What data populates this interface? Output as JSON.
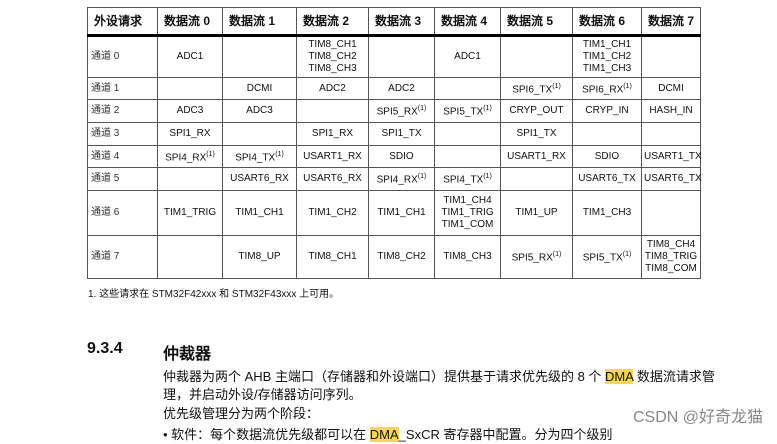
{
  "table": {
    "headers": [
      "外设请求",
      "数据流 0",
      "数据流 1",
      "数据流 2",
      "数据流 3",
      "数据流 4",
      "数据流 5",
      "数据流 6",
      "数据流 7"
    ],
    "rows": [
      {
        "channel": "通道 0",
        "cells": [
          [
            "ADC1"
          ],
          [],
          [
            "TIM8_CH1",
            "TIM8_CH2",
            "TIM8_CH3"
          ],
          [],
          [
            "ADC1"
          ],
          [],
          [
            "TIM1_CH1",
            "TIM1_CH2",
            "TIM1_CH3"
          ],
          []
        ]
      },
      {
        "channel": "通道 1",
        "cells": [
          [],
          [
            "DCMI"
          ],
          [
            "ADC2"
          ],
          [
            "ADC2"
          ],
          [],
          [
            "SPI6_TX(1)"
          ],
          [
            "SPI6_RX(1)"
          ],
          [
            "DCMI"
          ]
        ]
      },
      {
        "channel": "通道 2",
        "cells": [
          [
            "ADC3"
          ],
          [
            "ADC3"
          ],
          [],
          [
            "SPI5_RX(1)"
          ],
          [
            "SPI5_TX(1)"
          ],
          [
            "CRYP_OUT"
          ],
          [
            "CRYP_IN"
          ],
          [
            "HASH_IN"
          ]
        ]
      },
      {
        "channel": "通道 3",
        "cells": [
          [
            "SPI1_RX"
          ],
          [],
          [
            "SPI1_RX"
          ],
          [
            "SPI1_TX"
          ],
          [],
          [
            "SPI1_TX"
          ],
          [],
          []
        ]
      },
      {
        "channel": "通道 4",
        "cells": [
          [
            "SPI4_RX(1)"
          ],
          [
            "SPI4_TX(1)"
          ],
          [
            "USART1_RX"
          ],
          [
            "SDIO"
          ],
          [],
          [
            "USART1_RX"
          ],
          [
            "SDIO"
          ],
          [
            "USART1_TX"
          ]
        ]
      },
      {
        "channel": "通道 5",
        "cells": [
          [],
          [
            "USART6_RX"
          ],
          [
            "USART6_RX"
          ],
          [
            "SPI4_RX(1)"
          ],
          [
            "SPI4_TX(1)"
          ],
          [],
          [
            "USART6_TX"
          ],
          [
            "USART6_TX"
          ]
        ]
      },
      {
        "channel": "通道 6",
        "cells": [
          [
            "TIM1_TRIG"
          ],
          [
            "TIM1_CH1"
          ],
          [
            "TIM1_CH2"
          ],
          [
            "TIM1_CH1"
          ],
          [
            "TIM1_CH4",
            "TIM1_TRIG",
            "TIM1_COM"
          ],
          [
            "TIM1_UP"
          ],
          [
            "TIM1_CH3"
          ],
          []
        ]
      },
      {
        "channel": "通道 7",
        "cells": [
          [],
          [
            "TIM8_UP"
          ],
          [
            "TIM8_CH1"
          ],
          [
            "TIM8_CH2"
          ],
          [
            "TIM8_CH3"
          ],
          [
            "SPI5_RX(1)"
          ],
          [
            "SPI5_TX(1)"
          ],
          [
            "TIM8_CH4",
            "TIM8_TRIG",
            "TIM8_COM"
          ]
        ]
      }
    ]
  },
  "footnote": "1.  这些请求在 STM32F42xxx 和 STM32F43xxx 上可用。",
  "section": {
    "number": "9.3.4",
    "title": "仲裁器"
  },
  "para1": {
    "pre": "仲裁器为两个 AHB 主端口（存储器和外设端口）提供基于请求优先级的 8 个 ",
    "hl": "DMA",
    "post": " 数据流请求管理，并启动外设/存储器访问序列。"
  },
  "para2": "优先级管理分为两个阶段：",
  "bullet": {
    "pre": "•    软件：每个数据流优先级都可以在 ",
    "hl": "DMA",
    "post": "_SxCR 寄存器中配置。分为四个级别"
  },
  "watermark": "CSDN @好奇龙猫",
  "colors": {
    "highlight": "#f7d84a"
  }
}
